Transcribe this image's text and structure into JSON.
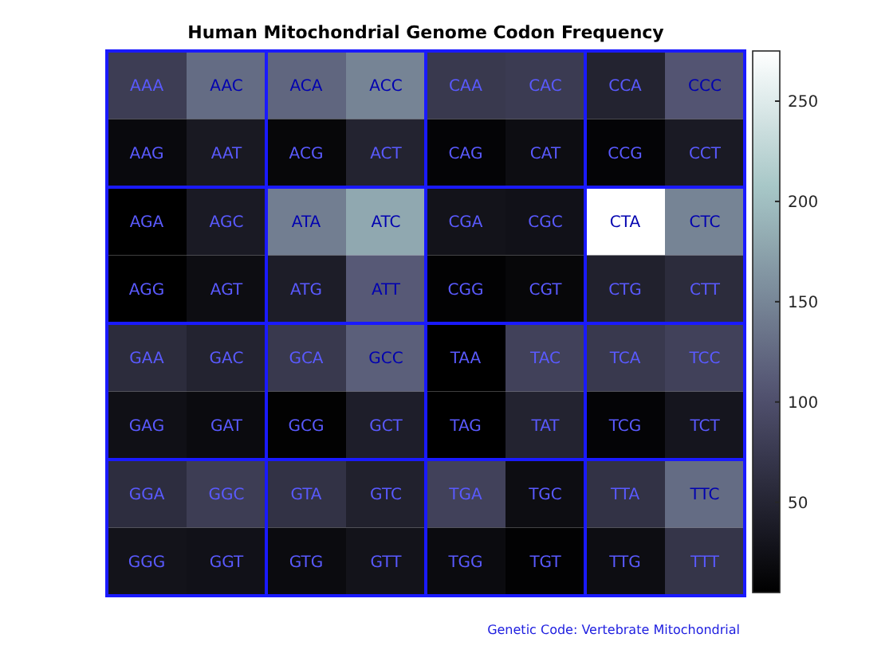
{
  "chart_data": {
    "type": "heatmap",
    "title": "Human Mitochondrial Genome Codon Frequency",
    "categories": [
      null,
      null,
      null,
      null,
      null,
      null,
      null,
      null
    ],
    "y_categories": [
      null,
      null,
      null,
      null,
      null,
      null,
      null,
      null
    ],
    "cells": [
      [
        79,
        127,
        122,
        148,
        74,
        77,
        47,
        106
      ],
      [
        16,
        35,
        13,
        47,
        10,
        21,
        10,
        37
      ],
      [
        5,
        37,
        143,
        180,
        28,
        26,
        275,
        148
      ],
      [
        5,
        21,
        40,
        111,
        8,
        13,
        45,
        58
      ],
      [
        58,
        47,
        74,
        116,
        5,
        84,
        74,
        84
      ],
      [
        24,
        18,
        7,
        42,
        5,
        47,
        10,
        31
      ],
      [
        60,
        79,
        66,
        45,
        84,
        21,
        66,
        127
      ],
      [
        28,
        26,
        18,
        28,
        18,
        8,
        21,
        69
      ]
    ],
    "cell_labels": [
      [
        "AAA",
        "AAC",
        "ACA",
        "ACC",
        "CAA",
        "CAC",
        "CCA",
        "CCC"
      ],
      [
        "AAG",
        "AAT",
        "ACG",
        "ACT",
        "CAG",
        "CAT",
        "CCG",
        "CCT"
      ],
      [
        "AGA",
        "AGC",
        "ATA",
        "ATC",
        "CGA",
        "CGC",
        "CTA",
        "CTC"
      ],
      [
        "AGG",
        "AGT",
        "ATG",
        "ATT",
        "CGG",
        "CGT",
        "CTG",
        "CTT"
      ],
      [
        "GAA",
        "GAC",
        "GCA",
        "GCC",
        "TAA",
        "TAC",
        "TCA",
        "TCC"
      ],
      [
        "GAG",
        "GAT",
        "GCG",
        "GCT",
        "TAG",
        "TAT",
        "TCG",
        "TCT"
      ],
      [
        "GGA",
        "GGC",
        "GTA",
        "GTC",
        "TGA",
        "TGC",
        "TTA",
        "TTC"
      ],
      [
        "GGG",
        "GGT",
        "GTG",
        "GTT",
        "TGG",
        "TGT",
        "TTG",
        "TTT"
      ]
    ],
    "clim": [
      5,
      275
    ],
    "cticks": [
      50,
      100,
      150,
      200,
      250
    ],
    "annotations": [
      "Genetic Code: Vertebrate Mitochondrial"
    ]
  }
}
